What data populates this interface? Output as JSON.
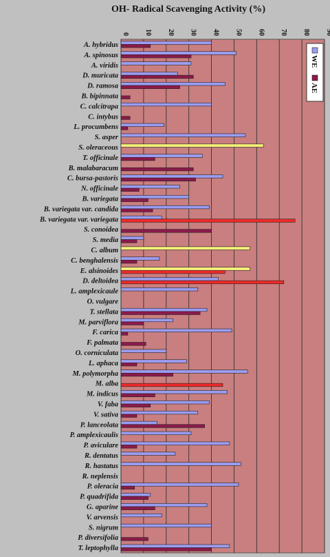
{
  "chart_data": {
    "type": "bar",
    "title": "OH- Radical Scavenging Activity (%)",
    "xlim": [
      0,
      90
    ],
    "ticks": [
      0,
      10,
      20,
      30,
      40,
      50,
      60,
      70,
      80,
      90
    ],
    "grid": true,
    "legend_placement": "top-right",
    "plot_color": "#c97f7f",
    "series": [
      {
        "name": "WE",
        "color": "#9c9cf0"
      },
      {
        "name": "AE",
        "color": "#8b1a4a"
      }
    ],
    "categories": [
      "A. hybridus",
      "A. spinosus",
      "A. viridis",
      "D. muricata",
      "D. ramosa",
      "B. bipinnata",
      "C. calcitrapa",
      "C. intybus",
      "L. procumbens",
      "S. asper",
      "S. oleraceous",
      "T. officinale",
      "B. malabaracum",
      "C. bursa-pastoris",
      "N. officinale",
      "B. variegata",
      "B. variegata var. candida",
      "B. variegata var. variegata",
      "S. conoidea",
      "S. media",
      "C. album",
      "C. benghalensis",
      "E. alsinoides",
      "D. deltoidea",
      "L. amplexicaule",
      "O. vulgare",
      "T. stellata",
      "M. parviflora",
      "F. carica",
      "F. palmata",
      "O. corniculata",
      "L. aphaca",
      "M. polymorpha",
      "M. alba",
      "M. indicus",
      "V. faba",
      "V. sativa",
      "P. lanceolata",
      "P. amplexicaulis",
      "P. aviculare",
      "R. dentatus",
      "R. hastatus",
      "R. neplensis",
      "P. oleracia",
      "P. quadrifida",
      "G. aparine",
      "V. arvensis",
      "S. nigrum",
      "P. diversifolia",
      "T. leptophylla"
    ],
    "values": [
      {
        "WE": 40,
        "AE": 13
      },
      {
        "WE": 51,
        "AE": 31
      },
      {
        "WE": 31,
        "AE": 0
      },
      {
        "WE": 25,
        "AE": 32
      },
      {
        "WE": 46,
        "AE": 26
      },
      {
        "WE": 0,
        "AE": 4
      },
      {
        "WE": 40,
        "AE": 0
      },
      {
        "WE": 0,
        "AE": 4
      },
      {
        "WE": 19,
        "AE": 3
      },
      {
        "WE": 55,
        "AE": 0
      },
      {
        "WE": 63,
        "AE": 0
      },
      {
        "WE": 36,
        "AE": 15
      },
      {
        "WE": 0,
        "AE": 32
      },
      {
        "WE": 45,
        "AE": 33
      },
      {
        "WE": 26,
        "AE": 8
      },
      {
        "WE": 30,
        "AE": 12
      },
      {
        "WE": 39,
        "AE": 14
      },
      {
        "WE": 18,
        "AE": 77
      },
      {
        "WE": 0,
        "AE": 40
      },
      {
        "WE": 10,
        "AE": 7
      },
      {
        "WE": 57,
        "AE": 0
      },
      {
        "WE": 17,
        "AE": 7
      },
      {
        "WE": 57,
        "AE": 46
      },
      {
        "WE": 43,
        "AE": 72
      },
      {
        "WE": 34,
        "AE": 0
      },
      {
        "WE": 0,
        "AE": 0
      },
      {
        "WE": 38,
        "AE": 35
      },
      {
        "WE": 23,
        "AE": 10
      },
      {
        "WE": 49,
        "AE": 3
      },
      {
        "WE": 0,
        "AE": 11
      },
      {
        "WE": 20,
        "AE": 0
      },
      {
        "WE": 29,
        "AE": 7
      },
      {
        "WE": 56,
        "AE": 23
      },
      {
        "WE": 0,
        "AE": 45
      },
      {
        "WE": 47,
        "AE": 15
      },
      {
        "WE": 39,
        "AE": 13
      },
      {
        "WE": 34,
        "AE": 7
      },
      {
        "WE": 16,
        "AE": 37
      },
      {
        "WE": 31,
        "AE": 0
      },
      {
        "WE": 48,
        "AE": 7
      },
      {
        "WE": 24,
        "AE": 0
      },
      {
        "WE": 53,
        "AE": 0
      },
      {
        "WE": 0,
        "AE": 0
      },
      {
        "WE": 52,
        "AE": 6
      },
      {
        "WE": 13,
        "AE": 12
      },
      {
        "WE": 38,
        "AE": 15
      },
      {
        "WE": 18,
        "AE": 0
      },
      {
        "WE": 40,
        "AE": 0
      },
      {
        "WE": 0,
        "AE": 12
      },
      {
        "WE": 48,
        "AE": 40
      }
    ],
    "highlights": [
      {
        "category": "S. oleraceous",
        "series": "WE",
        "color": "#f4f07a"
      },
      {
        "category": "C. album",
        "series": "WE",
        "color": "#f4f07a"
      },
      {
        "category": "E. alsinoides",
        "series": "WE",
        "color": "#f4f07a"
      },
      {
        "category": "B. variegata var. variegata",
        "series": "AE",
        "color": "#ee2a2a"
      },
      {
        "category": "E. alsinoides",
        "series": "AE",
        "color": "#ee2a2a"
      },
      {
        "category": "D. deltoidea",
        "series": "AE",
        "color": "#ee2a2a"
      },
      {
        "category": "M. alba",
        "series": "AE",
        "color": "#ee2a2a"
      }
    ]
  }
}
